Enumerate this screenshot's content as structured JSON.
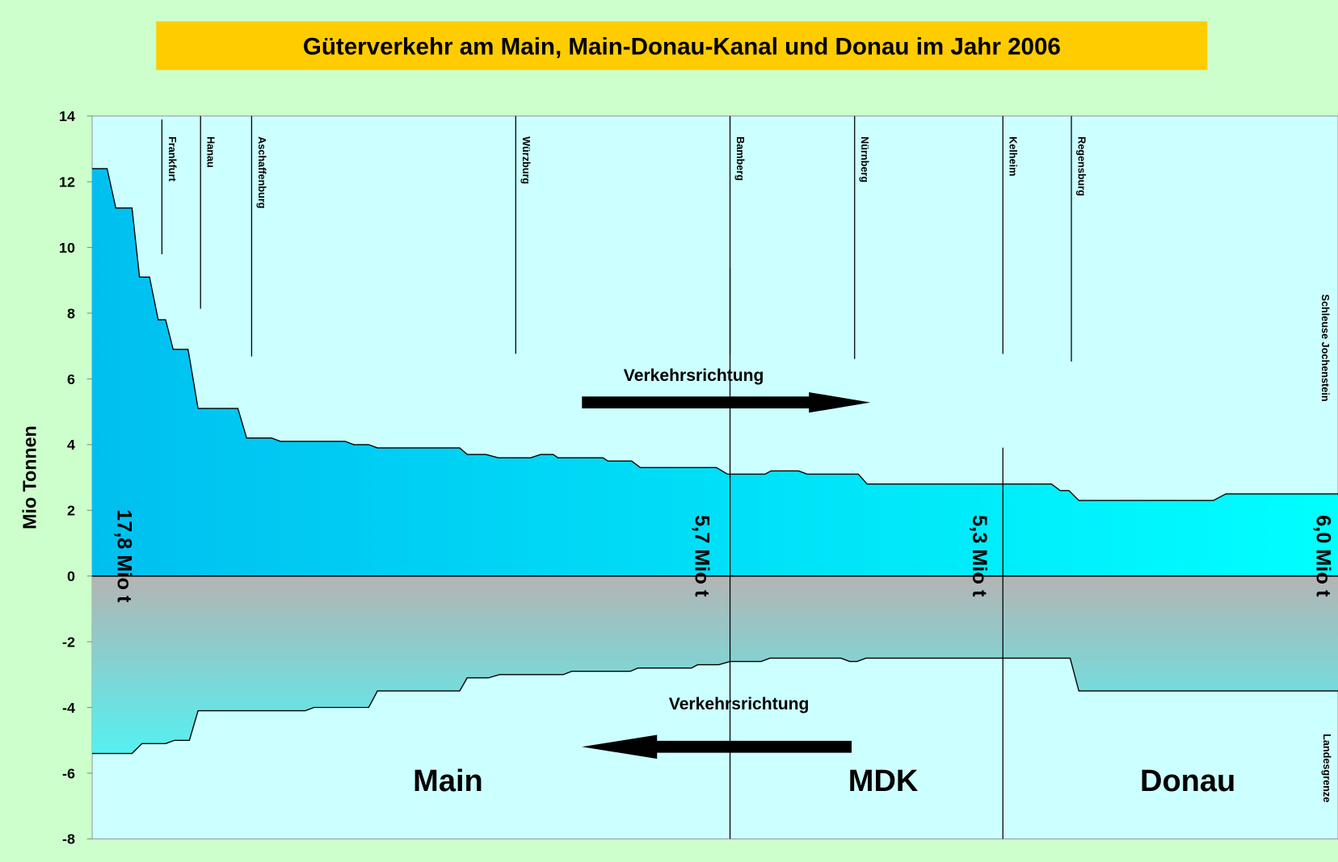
{
  "chart_data": {
    "type": "area",
    "title": "Güterverkehr am Main, Main-Donau-Kanal und Donau im Jahr 2006",
    "y_label": "Mio Tonnen",
    "xlim": [
      0,
      100
    ],
    "ylim": [
      -8,
      14
    ],
    "yticks": [
      -8,
      -6,
      -4,
      -2,
      0,
      2,
      4,
      6,
      8,
      10,
      12,
      14
    ],
    "series": [
      {
        "color": "#000000",
        "fill": [
          "#00bff0",
          "#00ffff"
        ],
        "x": [
          0,
          1.2,
          1.9,
          3.2,
          3.8,
          4.6,
          5.3,
          5.9,
          6.5,
          7.7,
          8.5,
          11.7,
          12.4,
          14.4,
          15.1,
          20.3,
          21.0,
          22.2,
          22.9,
          29.5,
          30.1,
          31.6,
          32.6,
          35.2,
          36.0,
          37.0,
          37.4,
          41.0,
          41.4,
          43.3,
          44.0,
          50.1,
          51.0,
          54.0,
          54.5,
          56.7,
          57.4,
          61.5,
          62.2,
          77.0,
          77.7,
          78.4,
          79.2,
          90.0,
          91.0,
          100
        ],
        "values": [
          12.4,
          12.4,
          11.2,
          11.2,
          9.1,
          9.1,
          7.8,
          7.8,
          6.9,
          6.9,
          5.1,
          5.1,
          4.2,
          4.2,
          4.1,
          4.1,
          4.0,
          4.0,
          3.9,
          3.9,
          3.7,
          3.7,
          3.6,
          3.6,
          3.7,
          3.7,
          3.6,
          3.6,
          3.5,
          3.5,
          3.3,
          3.3,
          3.1,
          3.1,
          3.2,
          3.2,
          3.1,
          3.1,
          2.8,
          2.8,
          2.6,
          2.6,
          2.3,
          2.3,
          2.5,
          2.5
        ]
      },
      {
        "color": "#000000",
        "fill": [
          "#b4b4b4",
          "#55f0f0"
        ],
        "x": [
          0,
          3.2,
          4.0,
          5.9,
          6.6,
          7.8,
          8.5,
          17.1,
          17.8,
          22.2,
          22.9,
          29.5,
          30.1,
          31.8,
          32.7,
          37.8,
          38.5,
          43.2,
          43.8,
          48.1,
          48.6,
          50.3,
          51.2,
          53.7,
          54.4,
          60.1,
          60.8,
          61.4,
          62.1,
          78.5,
          79.2,
          100
        ],
        "values": [
          -5.4,
          -5.4,
          -5.1,
          -5.1,
          -5.0,
          -5.0,
          -4.1,
          -4.1,
          -4.0,
          -4.0,
          -3.5,
          -3.5,
          -3.1,
          -3.1,
          -3.0,
          -3.0,
          -2.9,
          -2.9,
          -2.8,
          -2.8,
          -2.7,
          -2.7,
          -2.6,
          -2.6,
          -2.5,
          -2.5,
          -2.6,
          -2.6,
          -2.5,
          -2.5,
          -3.5,
          -3.5
        ]
      }
    ],
    "locations": [
      {
        "label": "Frankfurt",
        "x": 5.6
      },
      {
        "label": "Hanau",
        "x": 8.7
      },
      {
        "label": "Aschaffenburg",
        "x": 12.8
      },
      {
        "label": "Würzburg",
        "x": 34.0
      },
      {
        "label": "Bamberg",
        "x": 51.2
      },
      {
        "label": "Nürnberg",
        "x": 61.2
      },
      {
        "label": "Kelheim",
        "x": 73.1
      },
      {
        "label": "Regensburg",
        "x": 78.6
      }
    ],
    "sections": [
      "Main",
      "MDK",
      "Donau"
    ],
    "direction_labels": [
      "Verkehrsrichtung",
      "Verkehrsrichtung"
    ],
    "annotations": [
      "17,8 Mio t",
      "5,7 Mio t",
      "5,3 Mio t",
      "6,0 Mio t"
    ],
    "edge_labels": [
      "Schleuse Jochenstein",
      "Landesgrenze"
    ]
  }
}
